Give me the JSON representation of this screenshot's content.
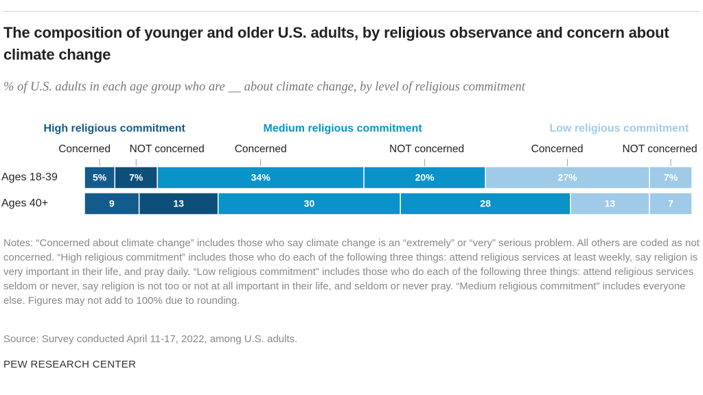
{
  "chart_data": {
    "type": "stacked-bar",
    "title": "The composition of younger and older U.S. adults, by religious observance and concern about climate change",
    "subtitle": "% of U.S. adults in each age group who are __ about climate change, by level of religious commitment",
    "categories": [
      "Ages 18-39",
      "Ages 40+"
    ],
    "groups": [
      {
        "name": "High religious commitment",
        "color": "#135b8b",
        "series": [
          {
            "name": "Concerned",
            "color": "#135b8b",
            "values": [
              5,
              9
            ],
            "value_labels": [
              "5%",
              "9"
            ]
          },
          {
            "name": "NOT concerned",
            "color": "#0e4f7a",
            "values": [
              7,
              13
            ],
            "value_labels": [
              "7%",
              "13"
            ]
          }
        ]
      },
      {
        "name": "Medium religious commitment",
        "color": "#0a93c8",
        "series": [
          {
            "name": "Concerned",
            "color": "#0a93c8",
            "values": [
              34,
              30
            ],
            "value_labels": [
              "34%",
              "30"
            ]
          },
          {
            "name": "NOT concerned",
            "color": "#0a93c8",
            "values": [
              20,
              28
            ],
            "value_labels": [
              "20%",
              "28"
            ]
          }
        ]
      },
      {
        "name": "Low religious commitment",
        "color": "#9fcbe8",
        "series": [
          {
            "name": "Concerned",
            "color": "#9fcbe8",
            "values": [
              27,
              13
            ],
            "value_labels": [
              "27%",
              "13"
            ]
          },
          {
            "name": "NOT concerned",
            "color": "#9fcbe8",
            "values": [
              7,
              7
            ],
            "value_labels": [
              "7%",
              "7"
            ]
          }
        ]
      }
    ],
    "notes": "Notes: “Concerned about climate change” includes those who say climate change is an “extremely” or “very” serious problem. All others are coded as not concerned. “High religious commitment” includes those who do each of the following three things: attend religious services at least weekly, say religion is very important in their life, and pray daily. “Low religious commitment” includes those who do each of the following three things: attend religious services seldom or never, say religion is not too or not at all important in their life, and seldom or never pray. “Medium religious commitment” includes everyone else. Figures may not add to 100% due to rounding.",
    "source": "Source: Survey conducted April 11-17, 2022, among U.S. adults.",
    "credit": "PEW RESEARCH CENTER"
  }
}
